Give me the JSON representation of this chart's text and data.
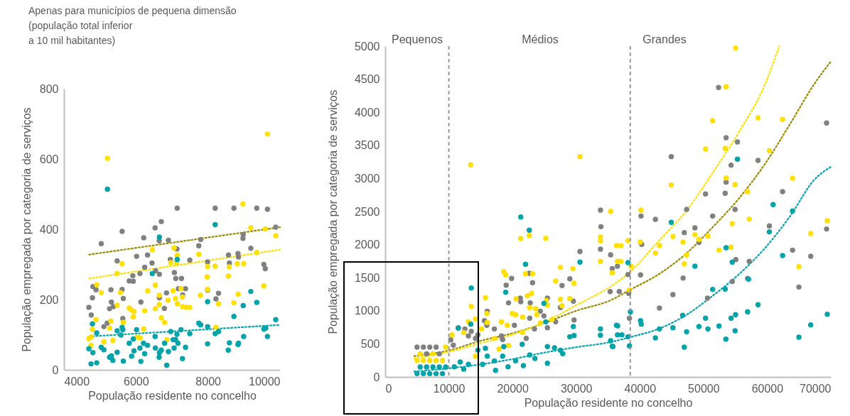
{
  "chart_data": [
    {
      "type": "scatter",
      "title": "Apenas para municípios de pequena dimensão\n(população total inferior\na 10 mil habitantes)",
      "xlabel": "População residente no concelho",
      "ylabel": "População empregada por categoria de serviços",
      "xlim": [
        4000,
        10000
      ],
      "xticks": [
        4000,
        6000,
        8000,
        10000
      ],
      "ylim": [
        0,
        800
      ],
      "yticks": [
        0,
        200,
        400,
        600,
        800
      ],
      "grid": false,
      "marker": "circle",
      "series": [
        {
          "color": "#808080",
          "x": [
            4692,
            4758,
            4791,
            4804,
            4890,
            5035,
            5108,
            5200,
            5305,
            5266,
            5318,
            5371,
            5477,
            5615,
            5615,
            5648,
            5635,
            5813,
            5925,
            5912,
            6017,
            6110,
            6136,
            6215,
            6241,
            6320,
            6446,
            6531,
            6545,
            6650,
            6644,
            6703,
            6650,
            6789,
            6848,
            6901,
            6954,
            7066,
            7145,
            7138,
            7105,
            7263,
            7178,
            7297,
            7376,
            7494,
            7745,
            7797,
            7989,
            7989,
            8200,
            8220,
            8292,
            8569,
            8595,
            8720,
            8833,
            8846,
            8978,
            8971,
            9189,
            9354,
            9551,
            9591,
            9651,
            9881
          ],
          "values": [
            178,
            156,
            205,
            237,
            228,
            359,
            123,
            133,
            228,
            174,
            193,
            180,
            310,
            394,
            229,
            203,
            146,
            253,
            252,
            268,
            323,
            274,
            193,
            376,
            292,
            327,
            304,
            404,
            282,
            272,
            367,
            422,
            205,
            175,
            219,
            369,
            314,
            277,
            460,
            344,
            260,
            260,
            231,
            213,
            231,
            312,
            353,
            371,
            307,
            227,
            460,
            202,
            218,
            327,
            304,
            460,
            331,
            321,
            385,
            374,
            346,
            460,
            300,
            288,
            457,
            406
          ]
        },
        {
          "color": "#ffe000",
          "x": [
            5207,
            9651,
            8971,
            9189,
            9591,
            9881,
            9354,
            8813,
            8991,
            8589,
            8569,
            8200,
            7989,
            7976,
            7745,
            7791,
            7989,
            8292,
            8720,
            8839,
            9551,
            8220,
            7059,
            7145,
            6967,
            7131,
            7033,
            7099,
            7290,
            7250,
            7151,
            7297,
            7402,
            7494,
            6888,
            6650,
            6538,
            6453,
            6327,
            6241,
            6650,
            6538,
            6703,
            6795,
            6861,
            5813,
            5879,
            5945,
            5925,
            5615,
            5477,
            5569,
            5477,
            5648,
            5305,
            5266,
            5358,
            5108,
            5035,
            4910,
            4890,
            4791,
            4758,
            4692,
            4752,
            6037,
            6116,
            6215
          ],
          "values": [
            602,
            671,
            472,
            404,
            401,
            382,
            334,
            302,
            302,
            293,
            267,
            295,
            294,
            264,
            329,
            212,
            229,
            188,
            191,
            215,
            239,
            121,
            347,
            326,
            305,
            305,
            225,
            203,
            207,
            231,
            188,
            180,
            178,
            178,
            198,
            212,
            241,
            342,
            225,
            168,
            186,
            174,
            148,
            135,
            86,
            176,
            170,
            166,
            151,
            302,
            274,
            220,
            184,
            135,
            139,
            119,
            84,
            80,
            220,
            242,
            143,
            115,
            94,
            89,
            70,
            93,
            91,
            116
          ]
        },
        {
          "color": "#00a3a8",
          "x": [
            5207,
            4791,
            4910,
            4692,
            4804,
            4752,
            4910,
            5035,
            5108,
            5266,
            5318,
            5358,
            5477,
            5477,
            5582,
            5615,
            5635,
            5648,
            5813,
            5879,
            5925,
            5945,
            6017,
            6110,
            6136,
            6209,
            6241,
            6320,
            6453,
            6531,
            6538,
            6650,
            6644,
            6650,
            6703,
            6795,
            6855,
            6901,
            6967,
            7033,
            7059,
            7099,
            7138,
            7145,
            7165,
            7250,
            7290,
            7376,
            7494,
            7745,
            7797,
            7989,
            7989,
            7989,
            8200,
            8200,
            8292,
            8562,
            8595,
            8720,
            8833,
            8846,
            8978,
            8991,
            9189,
            9354,
            9551,
            9604,
            9651,
            9881
          ],
          "values": [
            514,
            131,
            105,
            60,
            49,
            17,
            20,
            64,
            57,
            36,
            40,
            27,
            50,
            111,
            99,
            121,
            114,
            25,
            76,
            39,
            88,
            54,
            114,
            62,
            24,
            76,
            46,
            70,
            274,
            95,
            62,
            378,
            36,
            49,
            56,
            76,
            13,
            52,
            109,
            86,
            62,
            86,
            101,
            314,
            76,
            114,
            32,
            64,
            103,
            133,
            128,
            194,
            123,
            74,
            413,
            103,
            109,
            56,
            77,
            152,
            72,
            76,
            183,
            95,
            223,
            192,
            116,
            119,
            95,
            143
          ]
        },
        {
          "type": "line",
          "line_style": "dotted",
          "marker": "none",
          "color": "#9c8a00",
          "x": [
            4700,
            10000
          ],
          "values": [
            328,
            406
          ]
        },
        {
          "type": "line",
          "line_style": "dotted",
          "marker": "none",
          "color": "#ffe000",
          "x": [
            4700,
            10000
          ],
          "values": [
            260,
            342
          ]
        },
        {
          "type": "line",
          "line_style": "dotted",
          "marker": "none",
          "color": "#00a6ad",
          "x": [
            4700,
            10000
          ],
          "values": [
            95,
            128
          ]
        }
      ]
    },
    {
      "type": "scatter",
      "xlabel": "População residente no concelho",
      "ylabel": "População empregada por categoria de serviços",
      "xlim": [
        0,
        70000
      ],
      "xticks": [
        0,
        10000,
        20000,
        30000,
        40000,
        50000,
        60000,
        70000
      ],
      "ylim": [
        0,
        5000
      ],
      "yticks": [
        0,
        500,
        1000,
        1500,
        2000,
        2500,
        3000,
        3500,
        4000,
        4500,
        5000
      ],
      "grid": false,
      "marker": "circle",
      "ref_lines": [
        {
          "axis": "x",
          "value": 10000,
          "line_style": "dashed",
          "color": "#999999"
        },
        {
          "axis": "x",
          "value": 38500,
          "line_style": "dashed",
          "color": "#999999"
        }
      ],
      "annotations": [
        "Pequenos",
        "Médios",
        "Grandes"
      ],
      "series": [
        {
          "color": "#808080",
          "x": [
            6500,
            8500,
            5000,
            6000,
            7000,
            8000,
            10300,
            10700,
            11482,
            12519,
            13075,
            13520,
            14186,
            14557,
            15594,
            16038,
            15964,
            17149,
            18260,
            18446,
            19001,
            19853,
            19372,
            20298,
            21224,
            21298,
            22150,
            22632,
            23150,
            22780,
            22706,
            23446,
            24372,
            24928,
            25483,
            25483,
            26779,
            27779,
            27520,
            28999,
            29556,
            29667,
            30593,
            33818,
            33892,
            33818,
            35411,
            35670,
            36485,
            35337,
            52364,
            53552,
            55335,
            44938,
            58565,
            54332,
            69333,
            53552,
            53403,
            50322,
            62427,
            47352,
            51436,
            40186,
            42450,
            54963,
            48651,
            46980,
            60347,
            69333,
            49283,
            40297,
            63987,
            66845,
            55075,
            57191,
            38144,
            40111,
            46795,
            54518,
            56931,
            64989,
            36770,
            38255,
            45198,
            50619,
            43082,
            38366
          ],
          "values": [
            350,
            350,
            450,
            450,
            450,
            450,
            560,
            480,
            744,
            726,
            619,
            690,
            583,
            637,
            851,
            994,
            780,
            726,
            619,
            565,
            1388,
            1488,
            1120,
            780,
            1191,
            1137,
            583,
            1567,
            1424,
            1120,
            887,
            726,
            994,
            923,
            1191,
            744,
            833,
            1381,
            1048,
            1484,
            1145,
            862,
            1896,
            2522,
            2271,
            1932,
            1846,
            1638,
            1674,
            1291,
            4375,
            3616,
            3552,
            3330,
            3273,
            3201,
            3838,
            2944,
            2776,
            2765,
            2801,
            2533,
            2432,
            2432,
            2382,
            2533,
            2254,
            2182,
            2282,
            2236,
            2032,
            2003,
            1917,
            1824,
            1774,
            1746,
            1549,
            1542,
            1495,
            1442,
            1488,
            1359,
            1291,
            1263,
            1245,
            1191,
            1041,
            887
          ]
        },
        {
          "color": "#ffe000",
          "x": [
            5000,
            6000,
            7000,
            8000,
            9000,
            5500,
            7500,
            9500,
            13446,
            30593,
            35411,
            21298,
            22632,
            25224,
            33818,
            33818,
            36337,
            33818,
            36485,
            35670,
            27520,
            29482,
            26779,
            29667,
            18631,
            18927,
            22039,
            23150,
            22336,
            23002,
            27520,
            27779,
            28999,
            25298,
            25483,
            20557,
            19927,
            15742,
            16038,
            15964,
            13520,
            13075,
            14186,
            10482,
            12334,
            15112,
            17149,
            18260,
            19186,
            20483,
            21594,
            22706,
            23632,
            23817,
            24372,
            26224,
            19372,
            17890,
            14186,
            21594,
            55038,
            53552,
            51436,
            58565,
            62427,
            50322,
            53403,
            60347,
            44938,
            53552,
            54963,
            56931,
            63987,
            40186,
            57191,
            54518,
            69444,
            66845,
            48651,
            49283,
            50693,
            45198,
            38144,
            40074,
            46795,
            37030,
            43082,
            52438,
            54332,
            42450,
            47352,
            37030,
            46980,
            38626,
            64989,
            38366
          ],
          "values": [
            250,
            250,
            250,
            250,
            250,
            350,
            350,
            450,
            3205,
            3330,
            2504,
            2093,
            2139,
            2096,
            2114,
            2057,
            1985,
            1746,
            1746,
            1574,
            1656,
            1638,
            1449,
            1416,
            1592,
            1542,
            1560,
            1560,
            1227,
            1263,
            1173,
            1077,
            1184,
            1155,
            1084,
            1180,
            959,
            1198,
            823,
            959,
            1066,
            833,
            876,
            637,
            672,
            726,
            583,
            833,
            780,
            941,
            905,
            1048,
            1030,
            941,
            816,
            869,
            476,
            422,
            315,
            672,
            4972,
            4385,
            3874,
            3917,
            3892,
            3445,
            3455,
            3420,
            2901,
            3008,
            2908,
            2801,
            3005,
            2522,
            2386,
            2318,
            2361,
            2168,
            2150,
            2078,
            2128,
            2121,
            2060,
            2039,
            2039,
            1985,
            1985,
            1917,
            1960,
            1871,
            1842,
            1746,
            1710,
            1674,
            1667,
            1316
          ]
        },
        {
          "color": "#00a3a8",
          "x": [
            5000,
            6000,
            7000,
            8000,
            9000,
            5500,
            6500,
            7500,
            8500,
            9500,
            21298,
            22632,
            22039,
            30593,
            13520,
            18927,
            24928,
            13446,
            11482,
            25224,
            29556,
            28999,
            29667,
            33818,
            33818,
            35411,
            35670,
            36337,
            36485,
            21520,
            18631,
            15742,
            14557,
            16038,
            17149,
            18446,
            19298,
            20483,
            21705,
            22706,
            23521,
            25483,
            25483,
            26594,
            27520,
            27891,
            13075,
            11779,
            10853,
            12334,
            15298,
            17334,
            55335,
            60941,
            63987,
            44938,
            60347,
            53552,
            38144,
            48651,
            54518,
            62427,
            57080,
            51436,
            53403,
            38515,
            46721,
            58565,
            56931,
            55038,
            54332,
            50322,
            40111,
            40223,
            36510,
            69444,
            66845,
            43082,
            45198,
            49283,
            50693,
            52438,
            37178,
            38144,
            42450,
            47352,
            54963,
            53514,
            64989,
            46980,
            38366,
            35767
          ],
          "values": [
            50,
            50,
            50,
            50,
            50,
            150,
            150,
            150,
            150,
            150,
            2418,
            2218,
            1703,
            1735,
            1345,
            1281,
            1112,
            798,
            737,
            833,
            762,
            608,
            626,
            726,
            630,
            547,
            465,
            780,
            637,
            494,
            458,
            433,
            404,
            315,
            243,
            315,
            154,
            243,
            172,
            333,
            279,
            207,
            458,
            440,
            404,
            351,
            190,
            225,
            154,
            118,
            190,
            100,
            3291,
            2604,
            2508,
            2336,
            2193,
            1953,
            1728,
            1674,
            1735,
            1835,
            1477,
            1324,
            1327,
            984,
            930,
            1091,
            984,
            941,
            887,
            887,
            851,
            798,
            773,
            948,
            787,
            726,
            744,
            762,
            726,
            769,
            637,
            608,
            590,
            683,
            698,
            572,
            601,
            451,
            469,
            458
          ]
        },
        {
          "type": "line",
          "line_style": "dotted",
          "marker": "none",
          "color": "#9c8a00",
          "x": [
            4556,
            10000,
            15000,
            20000,
            25000,
            30000,
            35470,
            38440,
            42900,
            47350,
            51440,
            55520,
            59600,
            63690,
            67400,
            70000
          ],
          "values": [
            315,
            400,
            547,
            660,
            815,
            1000,
            1162,
            1316,
            1549,
            1871,
            2264,
            2693,
            3212,
            3838,
            4428,
            4768
          ]
        },
        {
          "type": "line",
          "line_style": "dotted",
          "marker": "none",
          "color": "#ffe000",
          "x": [
            4556,
            10000,
            15000,
            20000,
            25000,
            30000,
            36000,
            38440,
            42900,
            47350,
            51440,
            55520,
            59600,
            61900
          ],
          "values": [
            280,
            380,
            510,
            640,
            830,
            1084,
            1405,
            1585,
            2050,
            2515,
            3087,
            3695,
            4410,
            5000
          ]
        },
        {
          "type": "line",
          "line_style": "dotted",
          "marker": "none",
          "color": "#00a6ad",
          "x": [
            4556,
            10000,
            15000,
            20000,
            25000,
            30000,
            35470,
            38440,
            42900,
            47350,
            51440,
            55520,
            59600,
            63690,
            67400,
            70000
          ],
          "values": [
            82,
            130,
            190,
            270,
            368,
            450,
            529,
            601,
            726,
            941,
            1227,
            1549,
            1942,
            2443,
            2980,
            3176
          ]
        }
      ]
    }
  ]
}
